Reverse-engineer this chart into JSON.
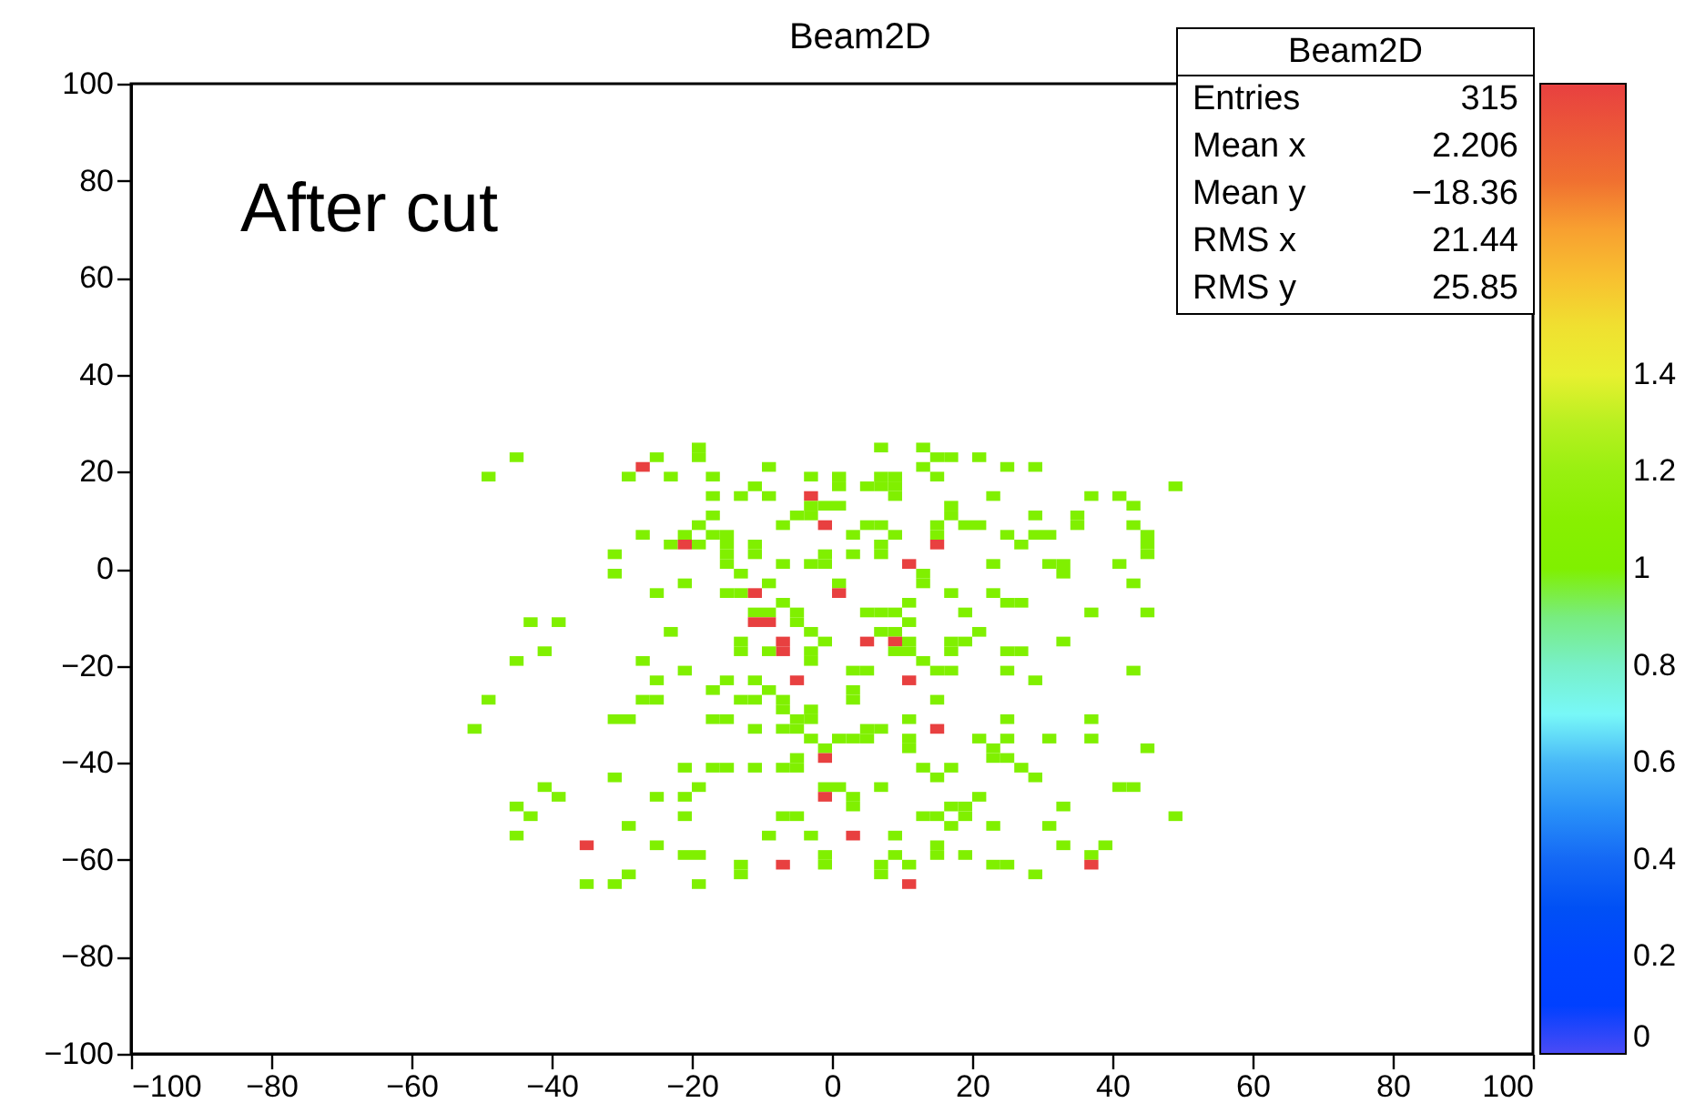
{
  "chart_data": {
    "type": "scatter",
    "title": "Beam2D",
    "marker": "square",
    "x": [
      -45,
      -49,
      -27,
      -25,
      -29,
      -23,
      -19,
      -19,
      -17,
      -9,
      -3,
      -17,
      -13,
      -11,
      -9,
      -3,
      -3,
      -1,
      -5,
      -3,
      -7,
      -1,
      -17,
      -19,
      -27,
      -21,
      -17,
      -15,
      -15,
      -15,
      -15,
      -23,
      -21,
      -19,
      -11,
      -11,
      -31,
      -7,
      -3,
      -1,
      -1,
      -31,
      -13,
      -21,
      -9,
      -25,
      -15,
      -13,
      -11,
      -7,
      -11,
      -9,
      -11,
      -9,
      -5,
      -5,
      -3,
      -1,
      -43,
      -39,
      -23,
      -13,
      -13,
      -7,
      -7,
      -9,
      -3,
      -3,
      -41,
      -45,
      -27,
      -21,
      -25,
      -15,
      -11,
      -5,
      -17,
      -9,
      -49,
      -27,
      -25,
      -13,
      -11,
      -7,
      -7,
      -3,
      -3,
      -5,
      -31,
      -29,
      -17,
      -15,
      -51,
      -11,
      -7,
      -5,
      -3,
      -1,
      -1,
      -5,
      -7,
      -5,
      -21,
      -17,
      -15,
      -11,
      -31,
      -1,
      -1,
      -41,
      -19,
      -39,
      -25,
      -21,
      -45,
      -43,
      -21,
      -7,
      -5,
      -29,
      -45,
      -9,
      -3,
      -35,
      -25,
      -21,
      -19,
      -1,
      -1,
      -13,
      -13,
      -7,
      -29,
      -35,
      -31,
      -19,
      7,
      13,
      15,
      17,
      21,
      13,
      15,
      25,
      29,
      1,
      1,
      7,
      9,
      5,
      7,
      9,
      9,
      23,
      37,
      41,
      49,
      43,
      1,
      17,
      17,
      19,
      21,
      15,
      15,
      15,
      5,
      7,
      3,
      9,
      7,
      7,
      29,
      35,
      35,
      43,
      25,
      29,
      31,
      27,
      45,
      45,
      45,
      3,
      11,
      13,
      13,
      23,
      31,
      33,
      33,
      41,
      43,
      1,
      1,
      17,
      23,
      25,
      27,
      11,
      5,
      7,
      9,
      11,
      19,
      37,
      45,
      7,
      9,
      21,
      5,
      9,
      11,
      9,
      11,
      17,
      19,
      17,
      33,
      25,
      27,
      13,
      3,
      5,
      15,
      17,
      25,
      43,
      11,
      29,
      3,
      3,
      15,
      11,
      25,
      37,
      15,
      5,
      7,
      1,
      3,
      5,
      11,
      11,
      21,
      25,
      31,
      37,
      45,
      23,
      23,
      25,
      13,
      17,
      15,
      27,
      29,
      1,
      3,
      3,
      7,
      41,
      43,
      21,
      17,
      19,
      19,
      13,
      15,
      17,
      23,
      31,
      33,
      49,
      33,
      39,
      37,
      37,
      3,
      9,
      9,
      11,
      7,
      7,
      15,
      15,
      19,
      23,
      25,
      29,
      11
    ],
    "values": [
      23,
      19,
      21,
      23,
      19,
      19,
      25,
      23,
      19,
      21,
      19,
      15,
      15,
      17,
      15,
      15,
      13,
      13,
      11,
      11,
      9,
      9,
      11,
      9,
      7,
      7,
      7,
      7,
      5,
      3,
      1,
      5,
      5,
      5,
      5,
      3,
      3,
      1,
      1,
      1,
      3,
      -1,
      -1,
      -3,
      -3,
      -5,
      -5,
      -5,
      -5,
      -7,
      -9,
      -9,
      -11,
      -11,
      -9,
      -11,
      -13,
      -15,
      -11,
      -11,
      -13,
      -15,
      -17,
      -15,
      -17,
      -17,
      -17,
      -19,
      -17,
      -19,
      -19,
      -21,
      -23,
      -23,
      -23,
      -23,
      -25,
      -25,
      -27,
      -27,
      -27,
      -27,
      -27,
      -27,
      -29,
      -29,
      -31,
      -31,
      -31,
      -31,
      -31,
      -31,
      -33,
      -33,
      -33,
      -33,
      -35,
      -37,
      -39,
      -39,
      -41,
      -41,
      -41,
      -41,
      -41,
      -41,
      -43,
      -45,
      -47,
      -45,
      -45,
      -47,
      -47,
      -47,
      -49,
      -51,
      -51,
      -51,
      -51,
      -53,
      -55,
      -55,
      -55,
      -57,
      -57,
      -59,
      -59,
      -59,
      -61,
      -61,
      -63,
      -61,
      -63,
      -65,
      -65,
      -65,
      25,
      25,
      23,
      23,
      23,
      21,
      19,
      21,
      21,
      19,
      17,
      19,
      19,
      17,
      17,
      17,
      15,
      15,
      15,
      15,
      17,
      13,
      13,
      13,
      11,
      9,
      9,
      9,
      7,
      5,
      9,
      9,
      7,
      7,
      5,
      3,
      11,
      11,
      9,
      9,
      7,
      7,
      7,
      5,
      7,
      5,
      3,
      3,
      1,
      -1,
      -3,
      1,
      1,
      1,
      -1,
      1,
      -3,
      -3,
      -5,
      -5,
      -5,
      -7,
      -7,
      -7,
      -9,
      -9,
      -9,
      -11,
      -9,
      -9,
      -9,
      -13,
      -13,
      -13,
      -15,
      -15,
      -15,
      -17,
      -17,
      -15,
      -15,
      -17,
      -15,
      -17,
      -17,
      -19,
      -21,
      -21,
      -21,
      -21,
      -21,
      -21,
      -23,
      -23,
      -25,
      -27,
      -27,
      -31,
      -31,
      -31,
      -33,
      -33,
      -33,
      -35,
      -35,
      -35,
      -35,
      -37,
      -35,
      -35,
      -35,
      -35,
      -37,
      -37,
      -39,
      -39,
      -41,
      -41,
      -43,
      -41,
      -43,
      -45,
      -47,
      -49,
      -45,
      -45,
      -45,
      -47,
      -49,
      -49,
      -51,
      -51,
      -51,
      -53,
      -53,
      -53,
      -49,
      -51,
      -57,
      -57,
      -59,
      -61,
      -55,
      -55,
      -59,
      -61,
      -61,
      -63,
      -57,
      -59,
      -59,
      -61,
      -61,
      -63,
      -65
    ],
    "cvalues": [
      1,
      1,
      2,
      1,
      1,
      1,
      1,
      1,
      1,
      1,
      1,
      1,
      1,
      1,
      1,
      2,
      1,
      1,
      1,
      1,
      1,
      2,
      1,
      1,
      1,
      1,
      1,
      1,
      1,
      1,
      1,
      1,
      2,
      1,
      1,
      1,
      1,
      1,
      1,
      1,
      1,
      1,
      1,
      1,
      1,
      1,
      1,
      1,
      2,
      1,
      1,
      1,
      2,
      2,
      1,
      1,
      1,
      1,
      1,
      1,
      1,
      1,
      1,
      2,
      2,
      1,
      1,
      1,
      1,
      1,
      1,
      1,
      1,
      1,
      1,
      2,
      1,
      1,
      1,
      1,
      1,
      1,
      1,
      1,
      1,
      1,
      1,
      1,
      1,
      1,
      1,
      1,
      1,
      1,
      1,
      1,
      1,
      1,
      2,
      1,
      1,
      1,
      1,
      1,
      1,
      1,
      1,
      1,
      2,
      1,
      1,
      1,
      1,
      1,
      1,
      1,
      1,
      1,
      1,
      1,
      1,
      1,
      1,
      2,
      1,
      1,
      1,
      1,
      1,
      1,
      1,
      2,
      1,
      1,
      1,
      1,
      1,
      1,
      1,
      1,
      1,
      1,
      1,
      1,
      1,
      1,
      1,
      1,
      1,
      1,
      1,
      1,
      1,
      1,
      1,
      1,
      1,
      1,
      1,
      1,
      1,
      1,
      1,
      1,
      1,
      2,
      1,
      1,
      1,
      1,
      1,
      1,
      1,
      1,
      1,
      1,
      1,
      1,
      1,
      1,
      1,
      1,
      1,
      1,
      2,
      1,
      1,
      1,
      1,
      1,
      1,
      1,
      1,
      1,
      2,
      1,
      1,
      1,
      1,
      1,
      1,
      1,
      1,
      1,
      1,
      1,
      1,
      1,
      1,
      1,
      2,
      2,
      1,
      1,
      1,
      1,
      1,
      1,
      1,
      1,
      1,
      1,
      1,
      1,
      1,
      1,
      1,
      1,
      2,
      1,
      1,
      1,
      1,
      1,
      1,
      1,
      2,
      1,
      1,
      1,
      1,
      1,
      1,
      1,
      1,
      1,
      1,
      1,
      1,
      1,
      1,
      1,
      1,
      1,
      1,
      1,
      1,
      1,
      1,
      1,
      1,
      1,
      1,
      1,
      1,
      1,
      1,
      1,
      1,
      1,
      1,
      1,
      1,
      1,
      1,
      1,
      1,
      2,
      2,
      1,
      1,
      1,
      1,
      1,
      1,
      1,
      1,
      1,
      1,
      1,
      2
    ],
    "xlim": [
      -100,
      100
    ],
    "ylim": [
      -100,
      100
    ],
    "xticks": [
      -100,
      -80,
      -60,
      -40,
      -20,
      0,
      20,
      40,
      60,
      80,
      100
    ],
    "yticks": [
      -100,
      -80,
      -60,
      -40,
      -20,
      0,
      20,
      40,
      60,
      80,
      100
    ],
    "clim": [
      0,
      2
    ],
    "cticks": [
      0,
      0.2,
      0.4,
      0.6,
      0.8,
      1,
      1.2,
      1.4
    ],
    "annotations": [
      "After cut",
      "Beam2D",
      "Entries 315",
      "Mean x 2.206",
      "Mean y −18.36",
      "RMS x 21.44",
      "RMS y 25.85"
    ]
  }
}
